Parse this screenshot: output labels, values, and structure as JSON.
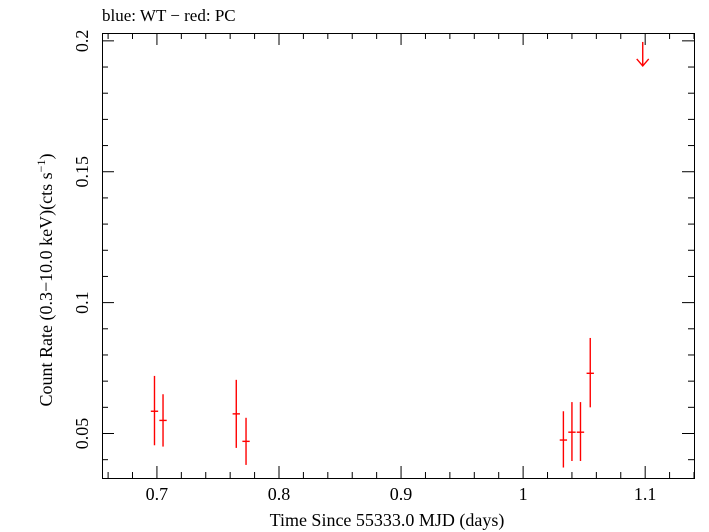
{
  "chart_data": {
    "type": "scatter",
    "title": "blue: WT − red: PC",
    "xlabel": "Time Since 55333.0 MJD (days)",
    "ylabel": "Count Rate (0.3−10.0 keV)(cts s",
    "ylabel_sup": "−1",
    "ylabel_end": ")",
    "xlim": [
      0.655,
      1.14
    ],
    "ylim": [
      0.033,
      0.203
    ],
    "x_ticks": [
      0.7,
      0.8,
      0.9,
      1.0,
      1.1
    ],
    "x_tick_labels": [
      "0.7",
      "0.8",
      "0.9",
      "1",
      "1.1"
    ],
    "y_ticks": [
      0.05,
      0.1,
      0.15,
      0.2
    ],
    "y_tick_labels": [
      "0.05",
      "0.1",
      "0.15",
      "0.2"
    ],
    "grid": false,
    "series": [
      {
        "color": "#ff0000",
        "points": [
          {
            "x": 0.698,
            "y": 0.0585,
            "xerr": 0.003,
            "ylo": 0.0455,
            "yhi": 0.072
          },
          {
            "x": 0.705,
            "y": 0.055,
            "xerr": 0.003,
            "ylo": 0.045,
            "yhi": 0.065
          },
          {
            "x": 0.765,
            "y": 0.0575,
            "xerr": 0.003,
            "ylo": 0.0445,
            "yhi": 0.0705
          },
          {
            "x": 0.773,
            "y": 0.047,
            "xerr": 0.003,
            "ylo": 0.038,
            "yhi": 0.056
          },
          {
            "x": 1.033,
            "y": 0.0475,
            "xerr": 0.003,
            "ylo": 0.037,
            "yhi": 0.0585
          },
          {
            "x": 1.04,
            "y": 0.0505,
            "xerr": 0.003,
            "ylo": 0.0395,
            "yhi": 0.062
          },
          {
            "x": 1.047,
            "y": 0.0505,
            "xerr": 0.003,
            "ylo": 0.0395,
            "yhi": 0.062
          },
          {
            "x": 1.055,
            "y": 0.073,
            "xerr": 0.003,
            "ylo": 0.06,
            "yhi": 0.0865
          }
        ],
        "upper_limits": [
          {
            "x": 1.098,
            "y": 0.195
          }
        ]
      }
    ]
  }
}
